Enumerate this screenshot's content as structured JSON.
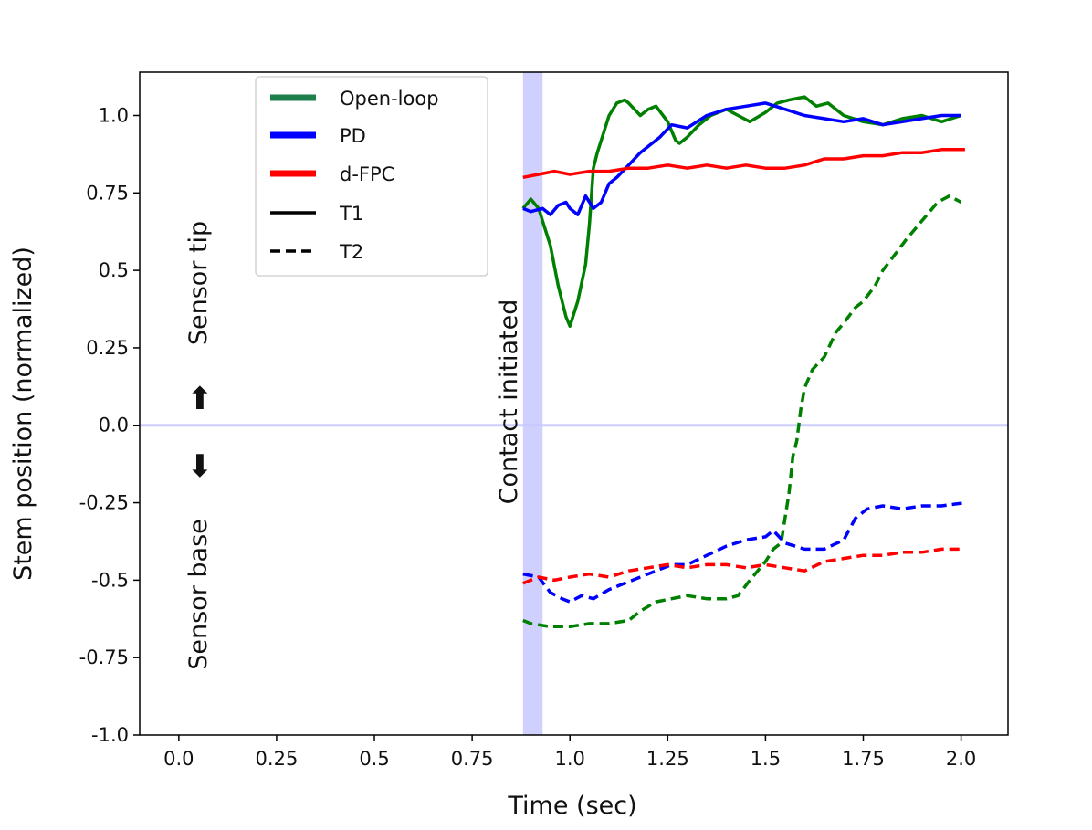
{
  "chart_data": {
    "type": "line",
    "xlabel": "Time (sec)",
    "ylabel": "Stem position (normalized)",
    "xlim": [
      -0.1,
      2.12
    ],
    "ylim": [
      -1.0,
      1.14
    ],
    "x_ticks": [
      0.0,
      0.25,
      0.5,
      0.75,
      1.0,
      1.25,
      1.5,
      1.75,
      2.0
    ],
    "x_tick_labels": [
      "0.0",
      "0.25",
      "0.5",
      "0.75",
      "1.0",
      "1.25",
      "1.5",
      "1.75",
      "2.0"
    ],
    "y_ticks": [
      -1.0,
      -0.75,
      -0.5,
      -0.25,
      0.0,
      0.25,
      0.5,
      0.75,
      1.0
    ],
    "y_tick_labels": [
      "-1.0",
      "-0.75",
      "-0.5",
      "-0.25",
      "0.0",
      "0.25",
      "0.5",
      "0.75",
      "1.0"
    ],
    "grid": false,
    "legend_position": "upper-left",
    "legend": [
      {
        "label": "Open-loop",
        "color": "#1f7f4c",
        "style": "solid"
      },
      {
        "label": "PD",
        "color": "#0000ff",
        "style": "solid"
      },
      {
        "label": "d-FPC",
        "color": "#ff0000",
        "style": "solid"
      },
      {
        "label": "T1",
        "color": "#000000",
        "style": "solid"
      },
      {
        "label": "T2",
        "color": "#000000",
        "style": "dashed"
      }
    ],
    "contact_band": {
      "x_from": 0.88,
      "x_to": 0.93,
      "color": "#c8c8ff",
      "label": "Contact initiated"
    },
    "zero_line": {
      "y": 0.0,
      "color": "#c8c8ff"
    },
    "annotations": {
      "sensor_tip": "Sensor tip",
      "sensor_base": "Sensor base",
      "up_arrow": "⬆",
      "down_arrow": "⬇"
    },
    "series": [
      {
        "name": "Open-loop",
        "trial": "T1",
        "color": "#008000",
        "dash": false,
        "x": [
          0.88,
          0.9,
          0.92,
          0.95,
          0.97,
          0.99,
          1.0,
          1.02,
          1.04,
          1.05,
          1.06,
          1.07,
          1.08,
          1.1,
          1.12,
          1.14,
          1.15,
          1.18,
          1.2,
          1.22,
          1.25,
          1.27,
          1.28,
          1.3,
          1.33,
          1.36,
          1.4,
          1.43,
          1.46,
          1.5,
          1.53,
          1.56,
          1.6,
          1.63,
          1.66,
          1.7,
          1.75,
          1.8,
          1.85,
          1.9,
          1.95,
          2.0
        ],
        "y": [
          0.7,
          0.73,
          0.7,
          0.58,
          0.45,
          0.35,
          0.32,
          0.4,
          0.52,
          0.65,
          0.83,
          0.88,
          0.92,
          1.0,
          1.04,
          1.05,
          1.04,
          1.0,
          1.02,
          1.03,
          0.98,
          0.92,
          0.91,
          0.93,
          0.97,
          1.0,
          1.02,
          1.0,
          0.98,
          1.01,
          1.04,
          1.05,
          1.06,
          1.03,
          1.04,
          1.0,
          0.98,
          0.97,
          0.99,
          1.0,
          0.98,
          1.0
        ]
      },
      {
        "name": "PD",
        "trial": "T1",
        "color": "#0000ff",
        "dash": false,
        "x": [
          0.88,
          0.9,
          0.93,
          0.95,
          0.97,
          0.99,
          1.0,
          1.02,
          1.04,
          1.06,
          1.08,
          1.1,
          1.12,
          1.15,
          1.18,
          1.2,
          1.23,
          1.26,
          1.3,
          1.35,
          1.4,
          1.45,
          1.5,
          1.55,
          1.6,
          1.65,
          1.7,
          1.75,
          1.8,
          1.85,
          1.9,
          1.95,
          2.0
        ],
        "y": [
          0.7,
          0.69,
          0.7,
          0.68,
          0.71,
          0.72,
          0.7,
          0.68,
          0.74,
          0.7,
          0.72,
          0.78,
          0.8,
          0.84,
          0.88,
          0.9,
          0.93,
          0.97,
          0.96,
          1.0,
          1.02,
          1.03,
          1.04,
          1.02,
          1.0,
          0.99,
          0.98,
          0.99,
          0.97,
          0.98,
          0.99,
          1.0,
          1.0
        ]
      },
      {
        "name": "d-FPC",
        "trial": "T1",
        "color": "#ff0000",
        "dash": false,
        "x": [
          0.88,
          0.92,
          0.96,
          1.0,
          1.05,
          1.1,
          1.15,
          1.2,
          1.25,
          1.3,
          1.35,
          1.4,
          1.45,
          1.5,
          1.55,
          1.6,
          1.65,
          1.7,
          1.75,
          1.8,
          1.85,
          1.9,
          1.95,
          2.01
        ],
        "y": [
          0.8,
          0.81,
          0.82,
          0.81,
          0.82,
          0.82,
          0.83,
          0.83,
          0.84,
          0.83,
          0.84,
          0.83,
          0.84,
          0.83,
          0.83,
          0.84,
          0.86,
          0.86,
          0.87,
          0.87,
          0.88,
          0.88,
          0.89,
          0.89
        ]
      },
      {
        "name": "Open-loop",
        "trial": "T2",
        "color": "#008000",
        "dash": true,
        "x": [
          0.88,
          0.9,
          0.95,
          1.0,
          1.05,
          1.1,
          1.15,
          1.18,
          1.22,
          1.26,
          1.3,
          1.35,
          1.4,
          1.43,
          1.46,
          1.5,
          1.52,
          1.54,
          1.55,
          1.56,
          1.57,
          1.58,
          1.59,
          1.6,
          1.62,
          1.65,
          1.68,
          1.7,
          1.73,
          1.75,
          1.78,
          1.8,
          1.83,
          1.86,
          1.9,
          1.94,
          1.97,
          2.0
        ],
        "y": [
          -0.63,
          -0.64,
          -0.65,
          -0.65,
          -0.64,
          -0.64,
          -0.63,
          -0.6,
          -0.57,
          -0.56,
          -0.55,
          -0.56,
          -0.56,
          -0.55,
          -0.5,
          -0.44,
          -0.4,
          -0.38,
          -0.3,
          -0.22,
          -0.1,
          -0.05,
          0.05,
          0.12,
          0.18,
          0.22,
          0.3,
          0.33,
          0.38,
          0.4,
          0.45,
          0.5,
          0.55,
          0.6,
          0.66,
          0.72,
          0.74,
          0.72
        ]
      },
      {
        "name": "PD",
        "trial": "T2",
        "color": "#0000ff",
        "dash": true,
        "x": [
          0.88,
          0.92,
          0.95,
          0.98,
          1.0,
          1.03,
          1.06,
          1.1,
          1.14,
          1.18,
          1.22,
          1.26,
          1.3,
          1.35,
          1.4,
          1.45,
          1.5,
          1.52,
          1.55,
          1.6,
          1.65,
          1.7,
          1.73,
          1.76,
          1.8,
          1.85,
          1.9,
          1.95,
          2.01
        ],
        "y": [
          -0.48,
          -0.49,
          -0.54,
          -0.56,
          -0.57,
          -0.55,
          -0.56,
          -0.53,
          -0.51,
          -0.49,
          -0.47,
          -0.45,
          -0.45,
          -0.42,
          -0.39,
          -0.37,
          -0.36,
          -0.34,
          -0.38,
          -0.4,
          -0.4,
          -0.37,
          -0.3,
          -0.27,
          -0.26,
          -0.27,
          -0.26,
          -0.26,
          -0.25
        ]
      },
      {
        "name": "d-FPC",
        "trial": "T2",
        "color": "#ff0000",
        "dash": true,
        "x": [
          0.88,
          0.92,
          0.96,
          1.0,
          1.05,
          1.1,
          1.15,
          1.2,
          1.25,
          1.3,
          1.35,
          1.4,
          1.45,
          1.5,
          1.55,
          1.6,
          1.65,
          1.7,
          1.75,
          1.8,
          1.85,
          1.9,
          1.95,
          2.0
        ],
        "y": [
          -0.51,
          -0.49,
          -0.5,
          -0.49,
          -0.48,
          -0.49,
          -0.47,
          -0.46,
          -0.45,
          -0.46,
          -0.45,
          -0.45,
          -0.46,
          -0.45,
          -0.46,
          -0.47,
          -0.44,
          -0.43,
          -0.42,
          -0.42,
          -0.41,
          -0.41,
          -0.4,
          -0.4
        ]
      }
    ]
  }
}
